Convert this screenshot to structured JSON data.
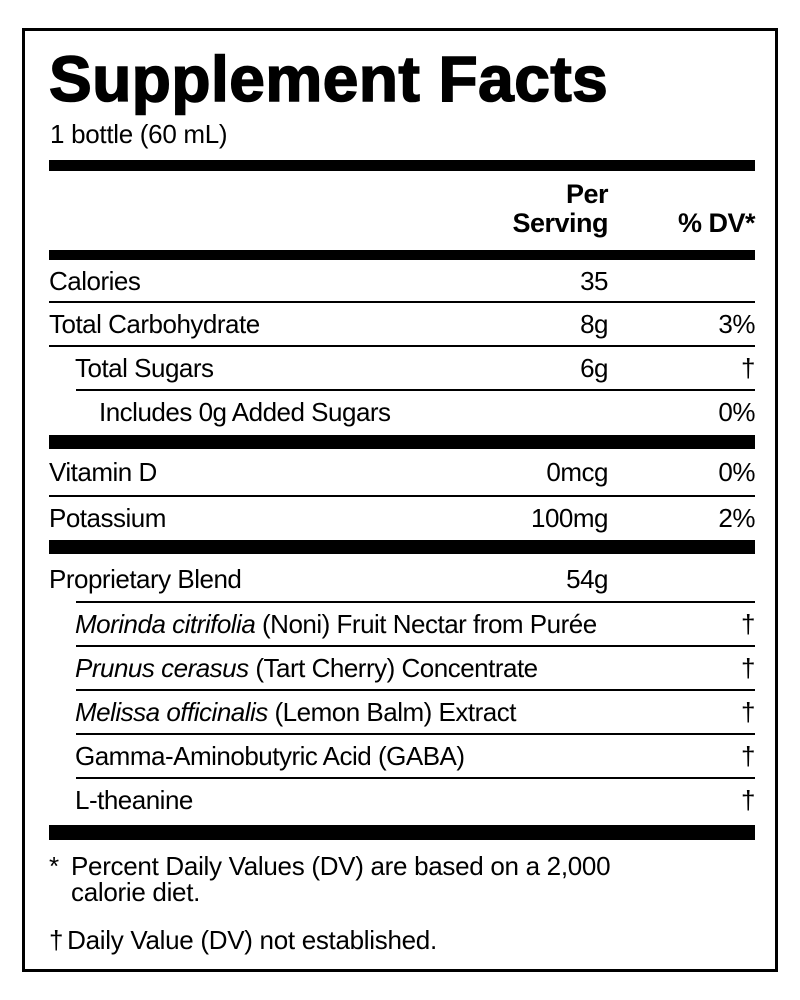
{
  "title": "Supplement Facts",
  "serving_size": "1 bottle (60 mL)",
  "header": {
    "per_serving_1": "Per",
    "per_serving_2": "Serving",
    "dv": "% DV*"
  },
  "rows": [
    {
      "name": "Calories",
      "amount": "35",
      "dv": ""
    },
    {
      "name": "Total Carbohydrate",
      "amount": "8g",
      "dv": "3%"
    },
    {
      "name": "Total Sugars",
      "amount": "6g",
      "dv": "†"
    },
    {
      "name": "Includes 0g Added Sugars",
      "amount": "",
      "dv": "0%"
    },
    {
      "name": "Vitamin D",
      "amount": "0mcg",
      "dv": "0%"
    },
    {
      "name": "Potassium",
      "amount": "100mg",
      "dv": "2%"
    },
    {
      "name": "Proprietary Blend",
      "amount": "54g",
      "dv": ""
    }
  ],
  "blend": [
    {
      "italic": "Morinda citrifolia",
      "rest": " (Noni) Fruit Nectar from Purée",
      "dv": "†"
    },
    {
      "italic": "Prunus cerasus",
      "rest": " (Tart Cherry) Concentrate",
      "dv": "†"
    },
    {
      "italic": "Melissa officinalis",
      "rest": " (Lemon Balm) Extract",
      "dv": "†"
    },
    {
      "italic": "",
      "rest": "Gamma-Aminobutyric Acid (GABA)",
      "dv": "†"
    },
    {
      "italic": "",
      "rest": "L-theanine",
      "dv": "†"
    }
  ],
  "footnotes": {
    "star_mark": "*",
    "star_line1": "Percent Daily Values (DV) are based on a 2,000",
    "star_line2": "calorie diet.",
    "dagger_mark": "†",
    "dagger_text": "Daily Value (DV) not established."
  }
}
